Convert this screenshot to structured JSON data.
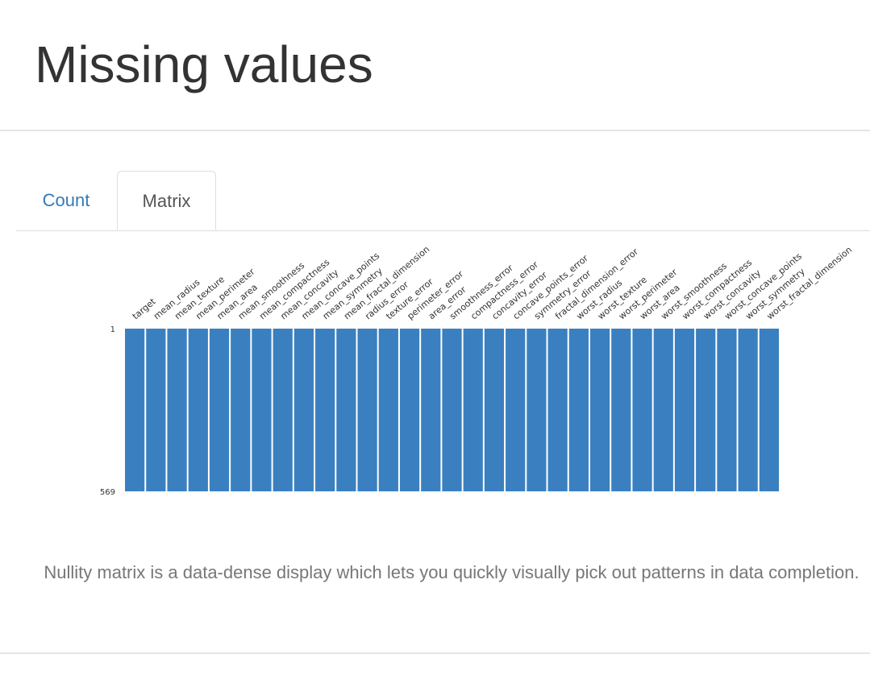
{
  "section": {
    "title": "Missing values"
  },
  "tabs": [
    {
      "label": "Count",
      "active": false
    },
    {
      "label": "Matrix",
      "active": true
    }
  ],
  "colors": {
    "link": "#337ab7",
    "matrix_fill": "#3a80c0"
  },
  "chart_data": {
    "type": "heatmap",
    "title": "Nullity matrix",
    "row_range": [
      1,
      569
    ],
    "row_tick_labels": [
      "1",
      "569"
    ],
    "columns": [
      "target",
      "mean_radius",
      "mean_texture",
      "mean_perimeter",
      "mean_area",
      "mean_smoothness",
      "mean_compactness",
      "mean_concavity",
      "mean_concave_points",
      "mean_symmetry",
      "mean_fractal_dimension",
      "radius_error",
      "texture_error",
      "perimeter_error",
      "area_error",
      "smoothness_error",
      "compactness_error",
      "concavity_error",
      "concave_points_error",
      "symmetry_error",
      "fractal_dimension_error",
      "worst_radius",
      "worst_texture",
      "worst_perimeter",
      "worst_area",
      "worst_smoothness",
      "worst_compactness",
      "worst_concavity",
      "worst_concave_points",
      "worst_symmetry",
      "worst_fractal_dimension"
    ],
    "missing_counts": [
      0,
      0,
      0,
      0,
      0,
      0,
      0,
      0,
      0,
      0,
      0,
      0,
      0,
      0,
      0,
      0,
      0,
      0,
      0,
      0,
      0,
      0,
      0,
      0,
      0,
      0,
      0,
      0,
      0,
      0,
      0
    ]
  },
  "caption": "Nullity matrix is a data-dense display which lets you quickly visually pick out patterns in data completion."
}
